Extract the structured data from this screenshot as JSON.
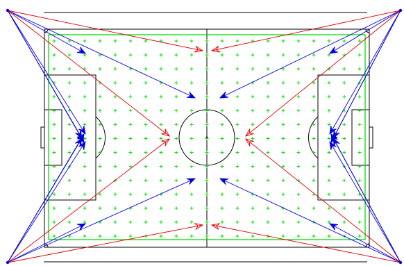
{
  "colors": {
    "pitch_lines": "#000000",
    "grid_marks": "#00dd00",
    "field_boundary": "#00dd00",
    "camera_rays_primary": "#0000dd",
    "camera_rays_secondary": "#dd0000",
    "background": "#ffffff"
  },
  "marks": {
    "grid_marker": "plus-sign",
    "camera_marker": "dot",
    "ray_head": "open-arrowhead"
  },
  "layout_notes": {
    "cameras": 4,
    "grid_rows": 15,
    "grid_cols": 21
  }
}
